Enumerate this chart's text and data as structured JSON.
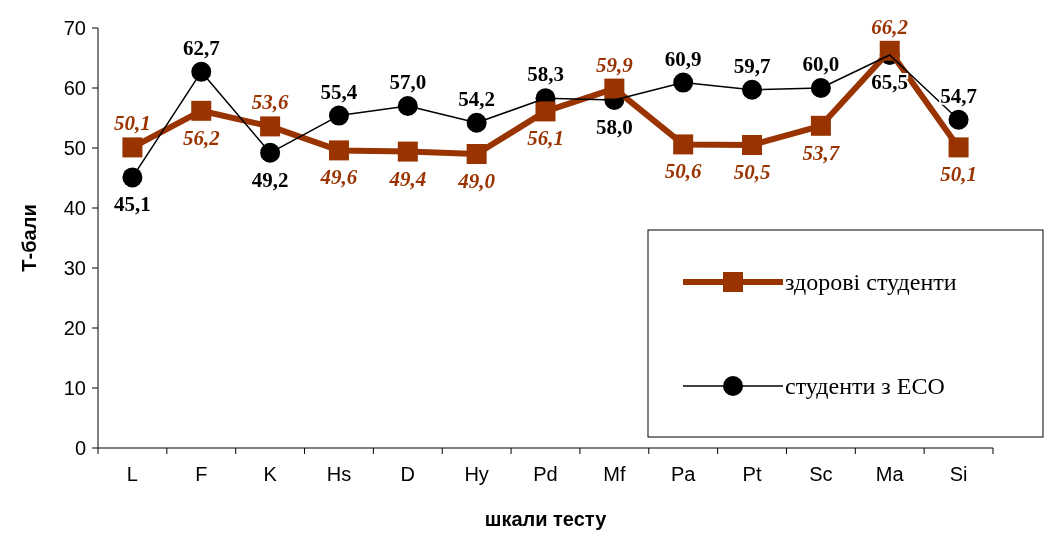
{
  "chart_data": {
    "type": "line",
    "xlabel": "шкали тесту",
    "ylabel": "Т-бали",
    "categories": [
      "L",
      "F",
      "K",
      "Hs",
      "D",
      "Hy",
      "Pd",
      "Mf",
      "Pa",
      "Pt",
      "Sc",
      "Ma",
      "Si"
    ],
    "ylim": [
      0,
      70
    ],
    "yticks": [
      0,
      10,
      20,
      30,
      40,
      50,
      60,
      70
    ],
    "grid": false,
    "legend": "right",
    "data_labels": true,
    "series": [
      {
        "name": "здорові студенти",
        "color": "#993300",
        "marker": "square",
        "values": [
          50.1,
          56.2,
          53.6,
          49.6,
          49.4,
          49.0,
          56.1,
          59.9,
          50.6,
          50.5,
          53.7,
          66.2,
          50.1
        ],
        "value_labels": [
          "50,1",
          "56,2",
          "53,6",
          "49,6",
          "49,4",
          "49,0",
          "56,1",
          "59,9",
          "50,6",
          "50,5",
          "53,7",
          "66,2",
          "50,1"
        ]
      },
      {
        "name": "студенти з ЕСО",
        "color": "#000000",
        "marker": "circle",
        "values": [
          45.1,
          62.7,
          49.2,
          55.4,
          57.0,
          54.2,
          58.3,
          58.0,
          60.9,
          59.7,
          60.0,
          65.5,
          54.7
        ],
        "value_labels": [
          "45,1",
          "62,7",
          "49,2",
          "55,4",
          "57,0",
          "54,2",
          "58,3",
          "58,0",
          "60,9",
          "59,7",
          "60,0",
          "65,5",
          "54,7"
        ]
      }
    ]
  }
}
